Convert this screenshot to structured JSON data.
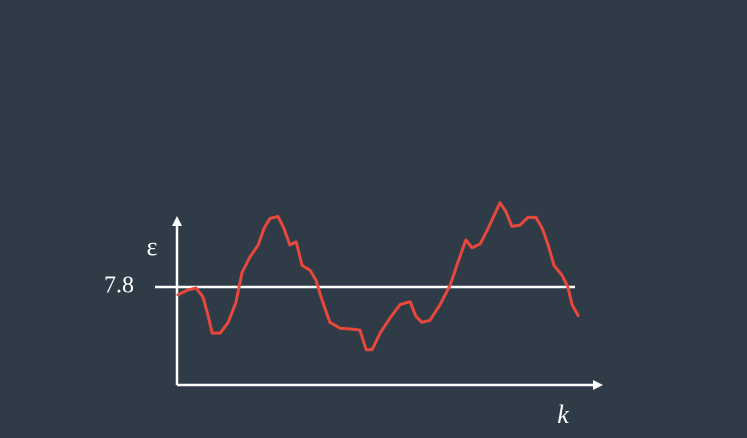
{
  "chart_data": {
    "type": "line",
    "y_label": "ε",
    "x_label": "k",
    "xlim": [
      0,
      100
    ],
    "ylim": [
      6.8,
      8.8
    ],
    "yticks": [
      7.8
    ],
    "reference_line": true,
    "series": [
      {
        "color": "#e8483c",
        "x": [
          0,
          2.4,
          4.3,
          5.9,
          7.1,
          8.1,
          10.0,
          11.9,
          13.7,
          15.2,
          17.1,
          19.0,
          20.4,
          21.8,
          23.7,
          25.1,
          26.5,
          28.0,
          29.4,
          31.3,
          32.7,
          34.1,
          36.0,
          38.4,
          41.2,
          43.1,
          44.6,
          46.0,
          47.9,
          50.2,
          52.6,
          55.0,
          56.4,
          57.8,
          59.7,
          62.1,
          64.5,
          66.4,
          68.2,
          69.7,
          71.6,
          73.5,
          74.9,
          76.3,
          77.7,
          79.1,
          81.0,
          82.9,
          84.8,
          86.3,
          87.7,
          89.1,
          91.0,
          92.4,
          93.4,
          94.8
        ],
        "values": [
          7.72,
          7.77,
          7.79,
          7.7,
          7.51,
          7.33,
          7.33,
          7.44,
          7.64,
          7.95,
          8.11,
          8.23,
          8.4,
          8.5,
          8.52,
          8.4,
          8.23,
          8.26,
          8.02,
          7.97,
          7.87,
          7.67,
          7.44,
          7.38,
          7.37,
          7.36,
          7.16,
          7.16,
          7.33,
          7.48,
          7.62,
          7.65,
          7.5,
          7.44,
          7.46,
          7.62,
          7.82,
          8.06,
          8.28,
          8.2,
          8.24,
          8.4,
          8.53,
          8.66,
          8.57,
          8.42,
          8.43,
          8.51,
          8.51,
          8.4,
          8.23,
          8.02,
          7.92,
          7.8,
          7.62,
          7.51
        ]
      }
    ]
  }
}
